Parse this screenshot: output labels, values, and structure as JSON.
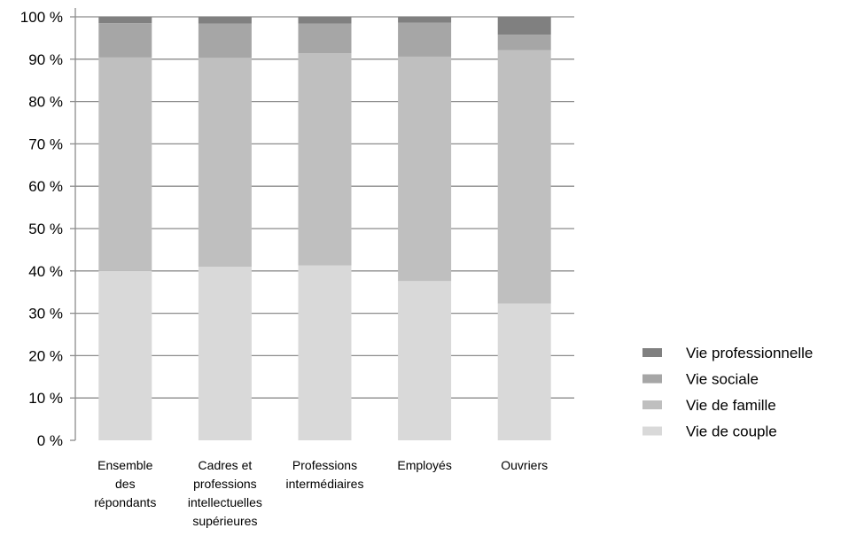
{
  "chart_data": {
    "type": "bar",
    "stacked": true,
    "percent": true,
    "categories": [
      [
        "Ensemble",
        "des",
        "répondants"
      ],
      [
        "Cadres et",
        "professions",
        "intellectuelles",
        "supérieures"
      ],
      [
        "Professions",
        "intermédiaires"
      ],
      [
        "Employés"
      ],
      [
        "Ouvriers"
      ]
    ],
    "series": [
      {
        "name": "Vie de couple",
        "color": "#d9d9d9",
        "values": [
          40,
          41,
          41.3,
          37.6,
          32.3
        ]
      },
      {
        "name": "Vie de famille",
        "color": "#bfbfbf",
        "values": [
          50.4,
          49.3,
          50.1,
          53,
          59.8
        ]
      },
      {
        "name": "Vie sociale",
        "color": "#a6a6a6",
        "values": [
          8.1,
          8.1,
          7,
          8,
          3.7
        ]
      },
      {
        "name": "Vie professionnelle",
        "color": "#808080",
        "values": [
          1.5,
          1.6,
          1.6,
          1.4,
          4.2
        ]
      }
    ],
    "legend_order": [
      "Vie professionnelle",
      "Vie sociale",
      "Vie de famille",
      "Vie de couple"
    ],
    "yticks": [
      "0 %",
      "10 %",
      "20 %",
      "30 %",
      "40 %",
      "50 %",
      "60 %",
      "70 %",
      "80 %",
      "90 %",
      "100 %"
    ],
    "ylim": [
      0,
      100
    ],
    "grid": true,
    "legend_position": "right"
  }
}
